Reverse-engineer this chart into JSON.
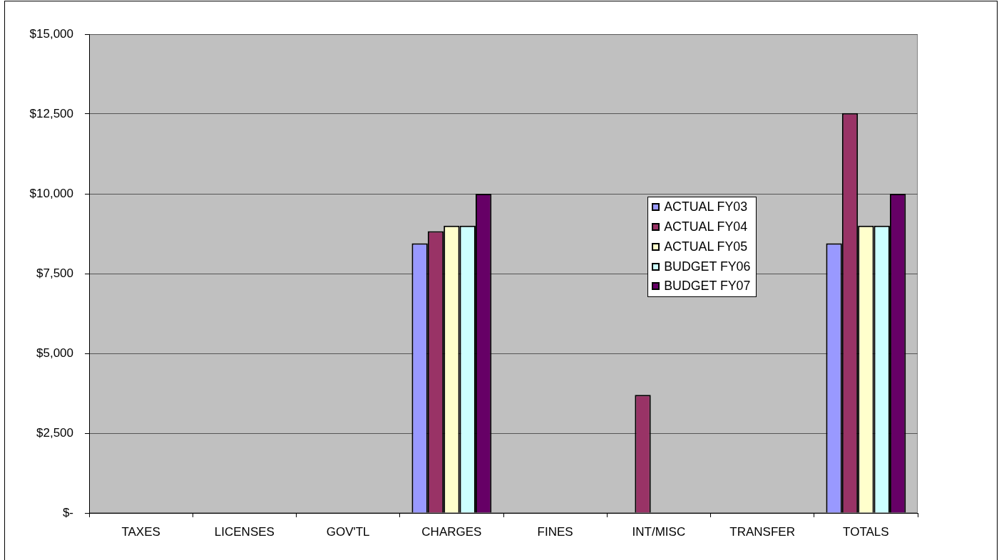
{
  "chart_data": {
    "type": "bar",
    "categories": [
      "TAXES",
      "LICENSES",
      "GOV'TL",
      "CHARGES",
      "FINES",
      "INT/MISC",
      "TRANSFER",
      "TOTALS"
    ],
    "series": [
      {
        "name": "ACTUAL FY03",
        "color": "#9999ff",
        "values": [
          null,
          null,
          null,
          8450,
          null,
          null,
          null,
          8450
        ]
      },
      {
        "name": "ACTUAL FY04",
        "color": "#993366",
        "values": [
          null,
          null,
          null,
          8830,
          null,
          3700,
          null,
          12530
        ]
      },
      {
        "name": "ACTUAL FY05",
        "color": "#ffffcc",
        "values": [
          null,
          null,
          null,
          9000,
          null,
          null,
          null,
          9000
        ]
      },
      {
        "name": "BUDGET FY06",
        "color": "#ccffff",
        "values": [
          null,
          null,
          null,
          9000,
          null,
          null,
          null,
          9000
        ]
      },
      {
        "name": "BUDGET FY07",
        "color": "#660066",
        "values": [
          null,
          null,
          null,
          10000,
          null,
          null,
          null,
          10000
        ]
      }
    ],
    "ylim": [
      0,
      15000
    ],
    "yticks": [
      {
        "value": 0,
        "label": "$-"
      },
      {
        "value": 2500,
        "label": "$2,500"
      },
      {
        "value": 5000,
        "label": "$5,000"
      },
      {
        "value": 7500,
        "label": "$7,500"
      },
      {
        "value": 10000,
        "label": "$10,000"
      },
      {
        "value": 12500,
        "label": "$12,500"
      },
      {
        "value": 15000,
        "label": "$15,000"
      }
    ],
    "grid": "y",
    "legend": "right"
  }
}
